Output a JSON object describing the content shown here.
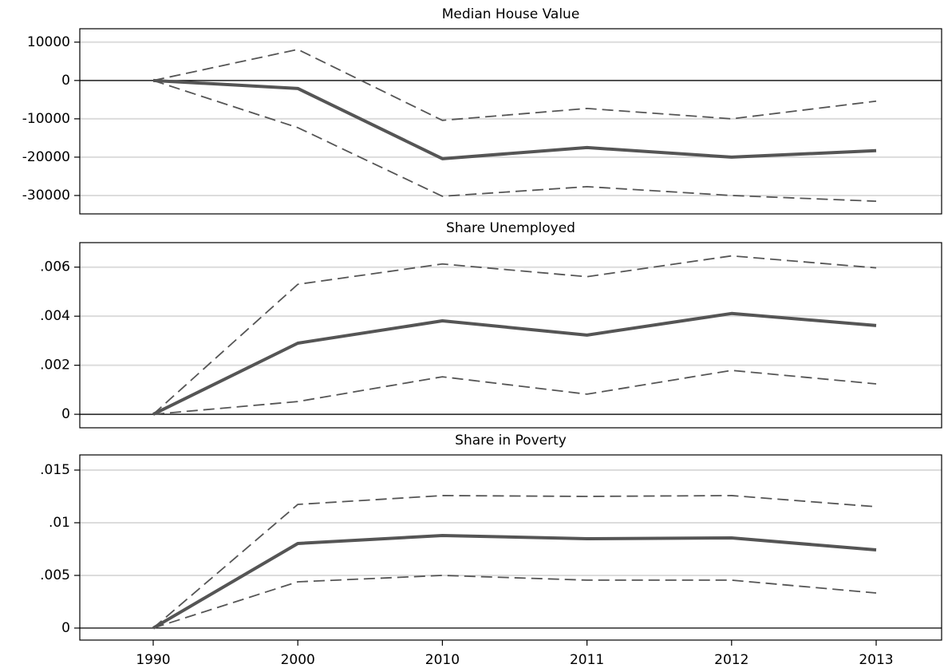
{
  "chart_data": [
    {
      "type": "line",
      "title": "Median House Value",
      "categories": [
        "1990",
        "2000",
        "2010",
        "2011",
        "2012",
        "2013"
      ],
      "ylim": [
        -34800,
        13500
      ],
      "yticks": [
        -30000,
        -20000,
        -10000,
        0,
        10000
      ],
      "grid": true,
      "series": [
        {
          "color": "#555555",
          "style": "solid",
          "values": [
            0,
            -2080,
            -20400,
            -17500,
            -20000,
            -18300
          ]
        },
        {
          "color": "#555555",
          "style": "dashed",
          "values": [
            0,
            8100,
            -10400,
            -7300,
            -10000,
            -5400
          ]
        },
        {
          "color": "#555555",
          "style": "dashed",
          "values": [
            0,
            -12300,
            -30200,
            -27700,
            -30000,
            -31500
          ]
        }
      ]
    },
    {
      "type": "line",
      "title": "Share Unemployed",
      "categories": [
        "1990",
        "2000",
        "2010",
        "2011",
        "2012",
        "2013"
      ],
      "ylim": [
        -0.00055,
        0.007
      ],
      "yticks": [
        0,
        {
          "value": 0.002,
          "label": ".002"
        },
        {
          "value": 0.004,
          "label": ".004"
        },
        {
          "value": 0.006,
          "label": ".006"
        }
      ],
      "grid": true,
      "series": [
        {
          "color": "#555555",
          "style": "solid",
          "values": [
            0,
            0.0029,
            0.00381,
            0.00323,
            0.00411,
            0.00362
          ]
        },
        {
          "color": "#555555",
          "style": "dashed",
          "values": [
            0,
            0.0053,
            0.00613,
            0.00561,
            0.00646,
            0.00597
          ]
        },
        {
          "color": "#555555",
          "style": "dashed",
          "values": [
            0,
            0.00052,
            0.00153,
            0.00082,
            0.00179,
            0.00124
          ]
        }
      ]
    },
    {
      "type": "line",
      "title": "Share in Poverty",
      "categories": [
        "1990",
        "2000",
        "2010",
        "2011",
        "2012",
        "2013"
      ],
      "ylim": [
        -0.00114,
        0.01644
      ],
      "yticks": [
        0,
        {
          "value": 0.005,
          "label": ".005"
        },
        {
          "value": 0.01,
          "label": ".01"
        },
        {
          "value": 0.015,
          "label": ".015"
        }
      ],
      "grid": true,
      "series": [
        {
          "color": "#555555",
          "style": "solid",
          "values": [
            0,
            0.00803,
            0.00879,
            0.00848,
            0.00856,
            0.00742
          ]
        },
        {
          "color": "#555555",
          "style": "dashed",
          "values": [
            0,
            0.01174,
            0.01258,
            0.0125,
            0.01258,
            0.01152
          ]
        },
        {
          "color": "#555555",
          "style": "dashed",
          "values": [
            0,
            0.00439,
            0.005,
            0.00455,
            0.00455,
            0.00333
          ]
        }
      ]
    }
  ]
}
